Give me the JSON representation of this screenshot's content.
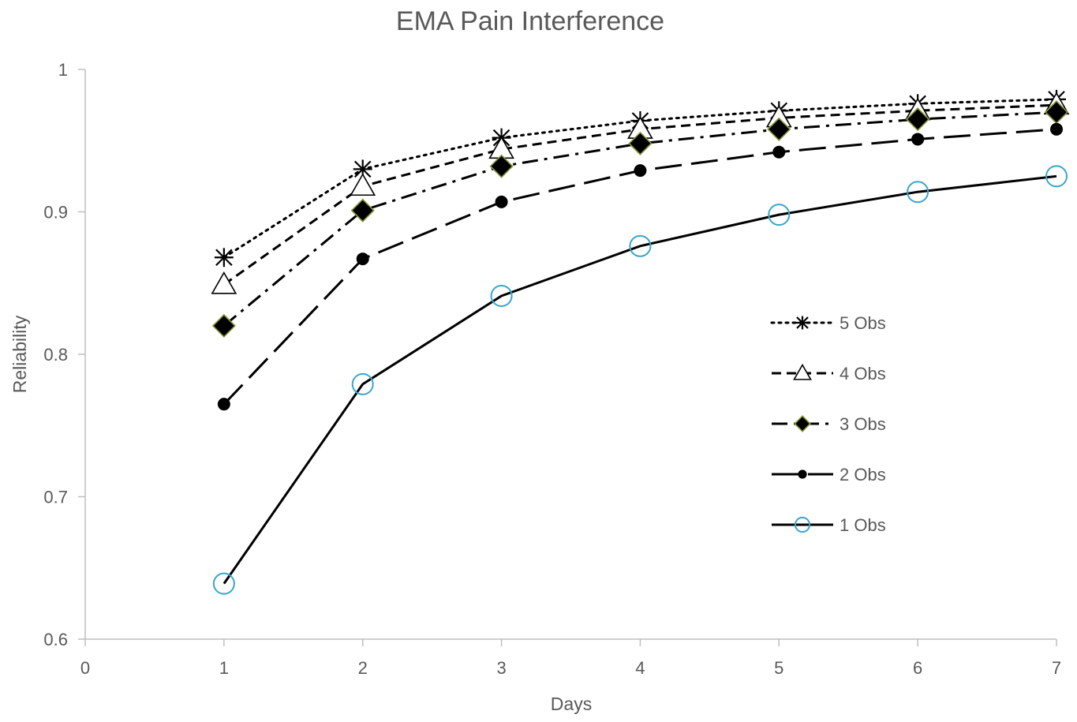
{
  "chart_data": {
    "type": "line",
    "title": "EMA Pain Interference",
    "xlabel": "Days",
    "ylabel": "Reliability",
    "xlim": [
      0,
      7
    ],
    "ylim": [
      0.6,
      1.0
    ],
    "x_ticks": [
      "0",
      "1",
      "2",
      "3",
      "4",
      "5",
      "6",
      "7"
    ],
    "y_ticks": [
      "0.6",
      "0.7",
      "0.8",
      "0.9",
      "1"
    ],
    "grid": false,
    "legend_position": "right",
    "x": [
      1,
      2,
      3,
      4,
      5,
      6,
      7
    ],
    "series": [
      {
        "name": "5 Obs",
        "values": [
          0.868,
          0.93,
          0.952,
          0.964,
          0.971,
          0.976,
          0.979
        ],
        "marker": "asterisk",
        "line": "dotted",
        "color": "#000000"
      },
      {
        "name": "4 Obs",
        "values": [
          0.849,
          0.918,
          0.944,
          0.958,
          0.966,
          0.971,
          0.975
        ],
        "marker": "triangle-open",
        "line": "short-dash",
        "color": "#000000"
      },
      {
        "name": "3 Obs",
        "values": [
          0.82,
          0.901,
          0.932,
          0.948,
          0.958,
          0.965,
          0.97
        ],
        "marker": "diamond-filled",
        "line": "dash-dot",
        "color": "#000000",
        "marker_edge": "#8a9a3a"
      },
      {
        "name": "2 Obs",
        "values": [
          0.765,
          0.867,
          0.907,
          0.929,
          0.942,
          0.951,
          0.958
        ],
        "marker": "circle-filled",
        "line": "long-dash",
        "color": "#000000"
      },
      {
        "name": "1 Obs",
        "values": [
          0.639,
          0.779,
          0.841,
          0.876,
          0.898,
          0.914,
          0.925
        ],
        "marker": "circle-open",
        "line": "solid",
        "color": "#000000",
        "marker_edge": "#3aa6c8"
      }
    ]
  }
}
